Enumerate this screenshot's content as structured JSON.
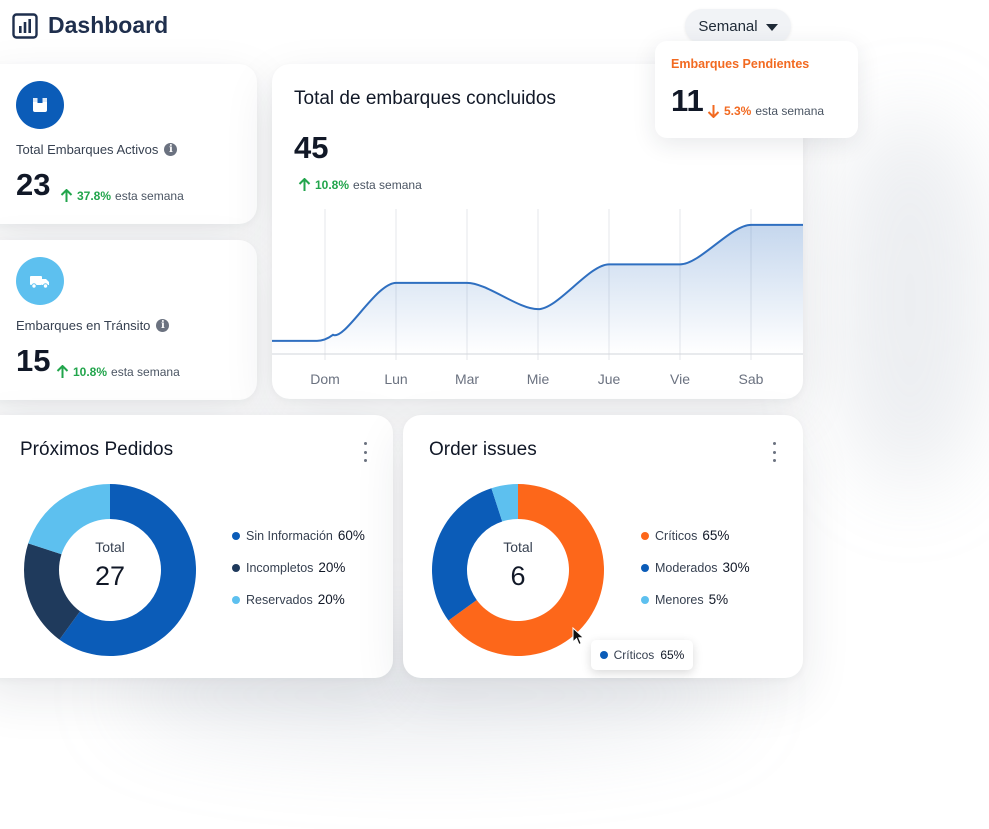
{
  "header": {
    "title": "Dashboard",
    "period_selector": {
      "selected": "Semanal"
    }
  },
  "stats": {
    "total_activos": {
      "label": "Total Embarques Activos",
      "value": "23",
      "trend_pct": "37.8%",
      "trend_text": "esta semana",
      "trend_direction": "up"
    },
    "en_transito": {
      "label": "Embarques en Tránsito",
      "value": "15",
      "trend_pct": "10.8%",
      "trend_text": "esta semana",
      "trend_direction": "up"
    },
    "pendientes": {
      "label": "Embarques Pendientes",
      "value": "11",
      "trend_pct": "5.3%",
      "trend_text": "esta semana",
      "trend_direction": "down"
    }
  },
  "line_card": {
    "title": "Total de embarques concluidos",
    "value": "45",
    "trend_pct": "10.8%",
    "trend_text": "esta semana"
  },
  "proximos_card": {
    "title": "Próximos Pedidos",
    "center_label": "Total",
    "center_value": "27"
  },
  "issues_card": {
    "title": "Order issues",
    "center_label": "Total",
    "center_value": "6",
    "tooltip": {
      "label": "Críticos",
      "value": "65%"
    }
  },
  "colors": {
    "up": "#22a54c",
    "down": "#f26a21",
    "line": "#2f6fc0",
    "blue_dark": "#0b5cb8",
    "navy": "#1f3a5c",
    "light_blue": "#5dc0ef",
    "orange": "#fd671a"
  },
  "icons": {
    "logo": "bar-chart-icon",
    "activos": "box-icon",
    "transito": "truck-icon",
    "info": "info-icon",
    "up": "arrow-up-icon",
    "down": "arrow-down-icon"
  },
  "chart_data": [
    {
      "type": "line",
      "categories": [
        "Dom",
        "Lun",
        "Mar",
        "Mie",
        "Jue",
        "Vie",
        "Sab"
      ],
      "series": [
        {
          "values": [
            5,
            27,
            27,
            17,
            34,
            34,
            49
          ]
        }
      ],
      "ylim": [
        0,
        55
      ],
      "grid": "vertical"
    },
    {
      "type": "pie",
      "categories": [
        "Sin Información",
        "Incompletos",
        "Reservados"
      ],
      "values": [
        60,
        20,
        20
      ],
      "labels": [
        "60%",
        "20%",
        "20%"
      ],
      "colors": [
        "#0b5cb8",
        "#1f3a5c",
        "#5dc0ef"
      ],
      "legend": "right"
    },
    {
      "type": "pie",
      "categories": [
        "Críticos",
        "Moderados",
        "Menores"
      ],
      "values": [
        65,
        30,
        5
      ],
      "labels": [
        "65%",
        "30%",
        "5%"
      ],
      "colors": [
        "#fd671a",
        "#0b5cb8",
        "#5dc0ef"
      ],
      "legend": "right"
    }
  ]
}
